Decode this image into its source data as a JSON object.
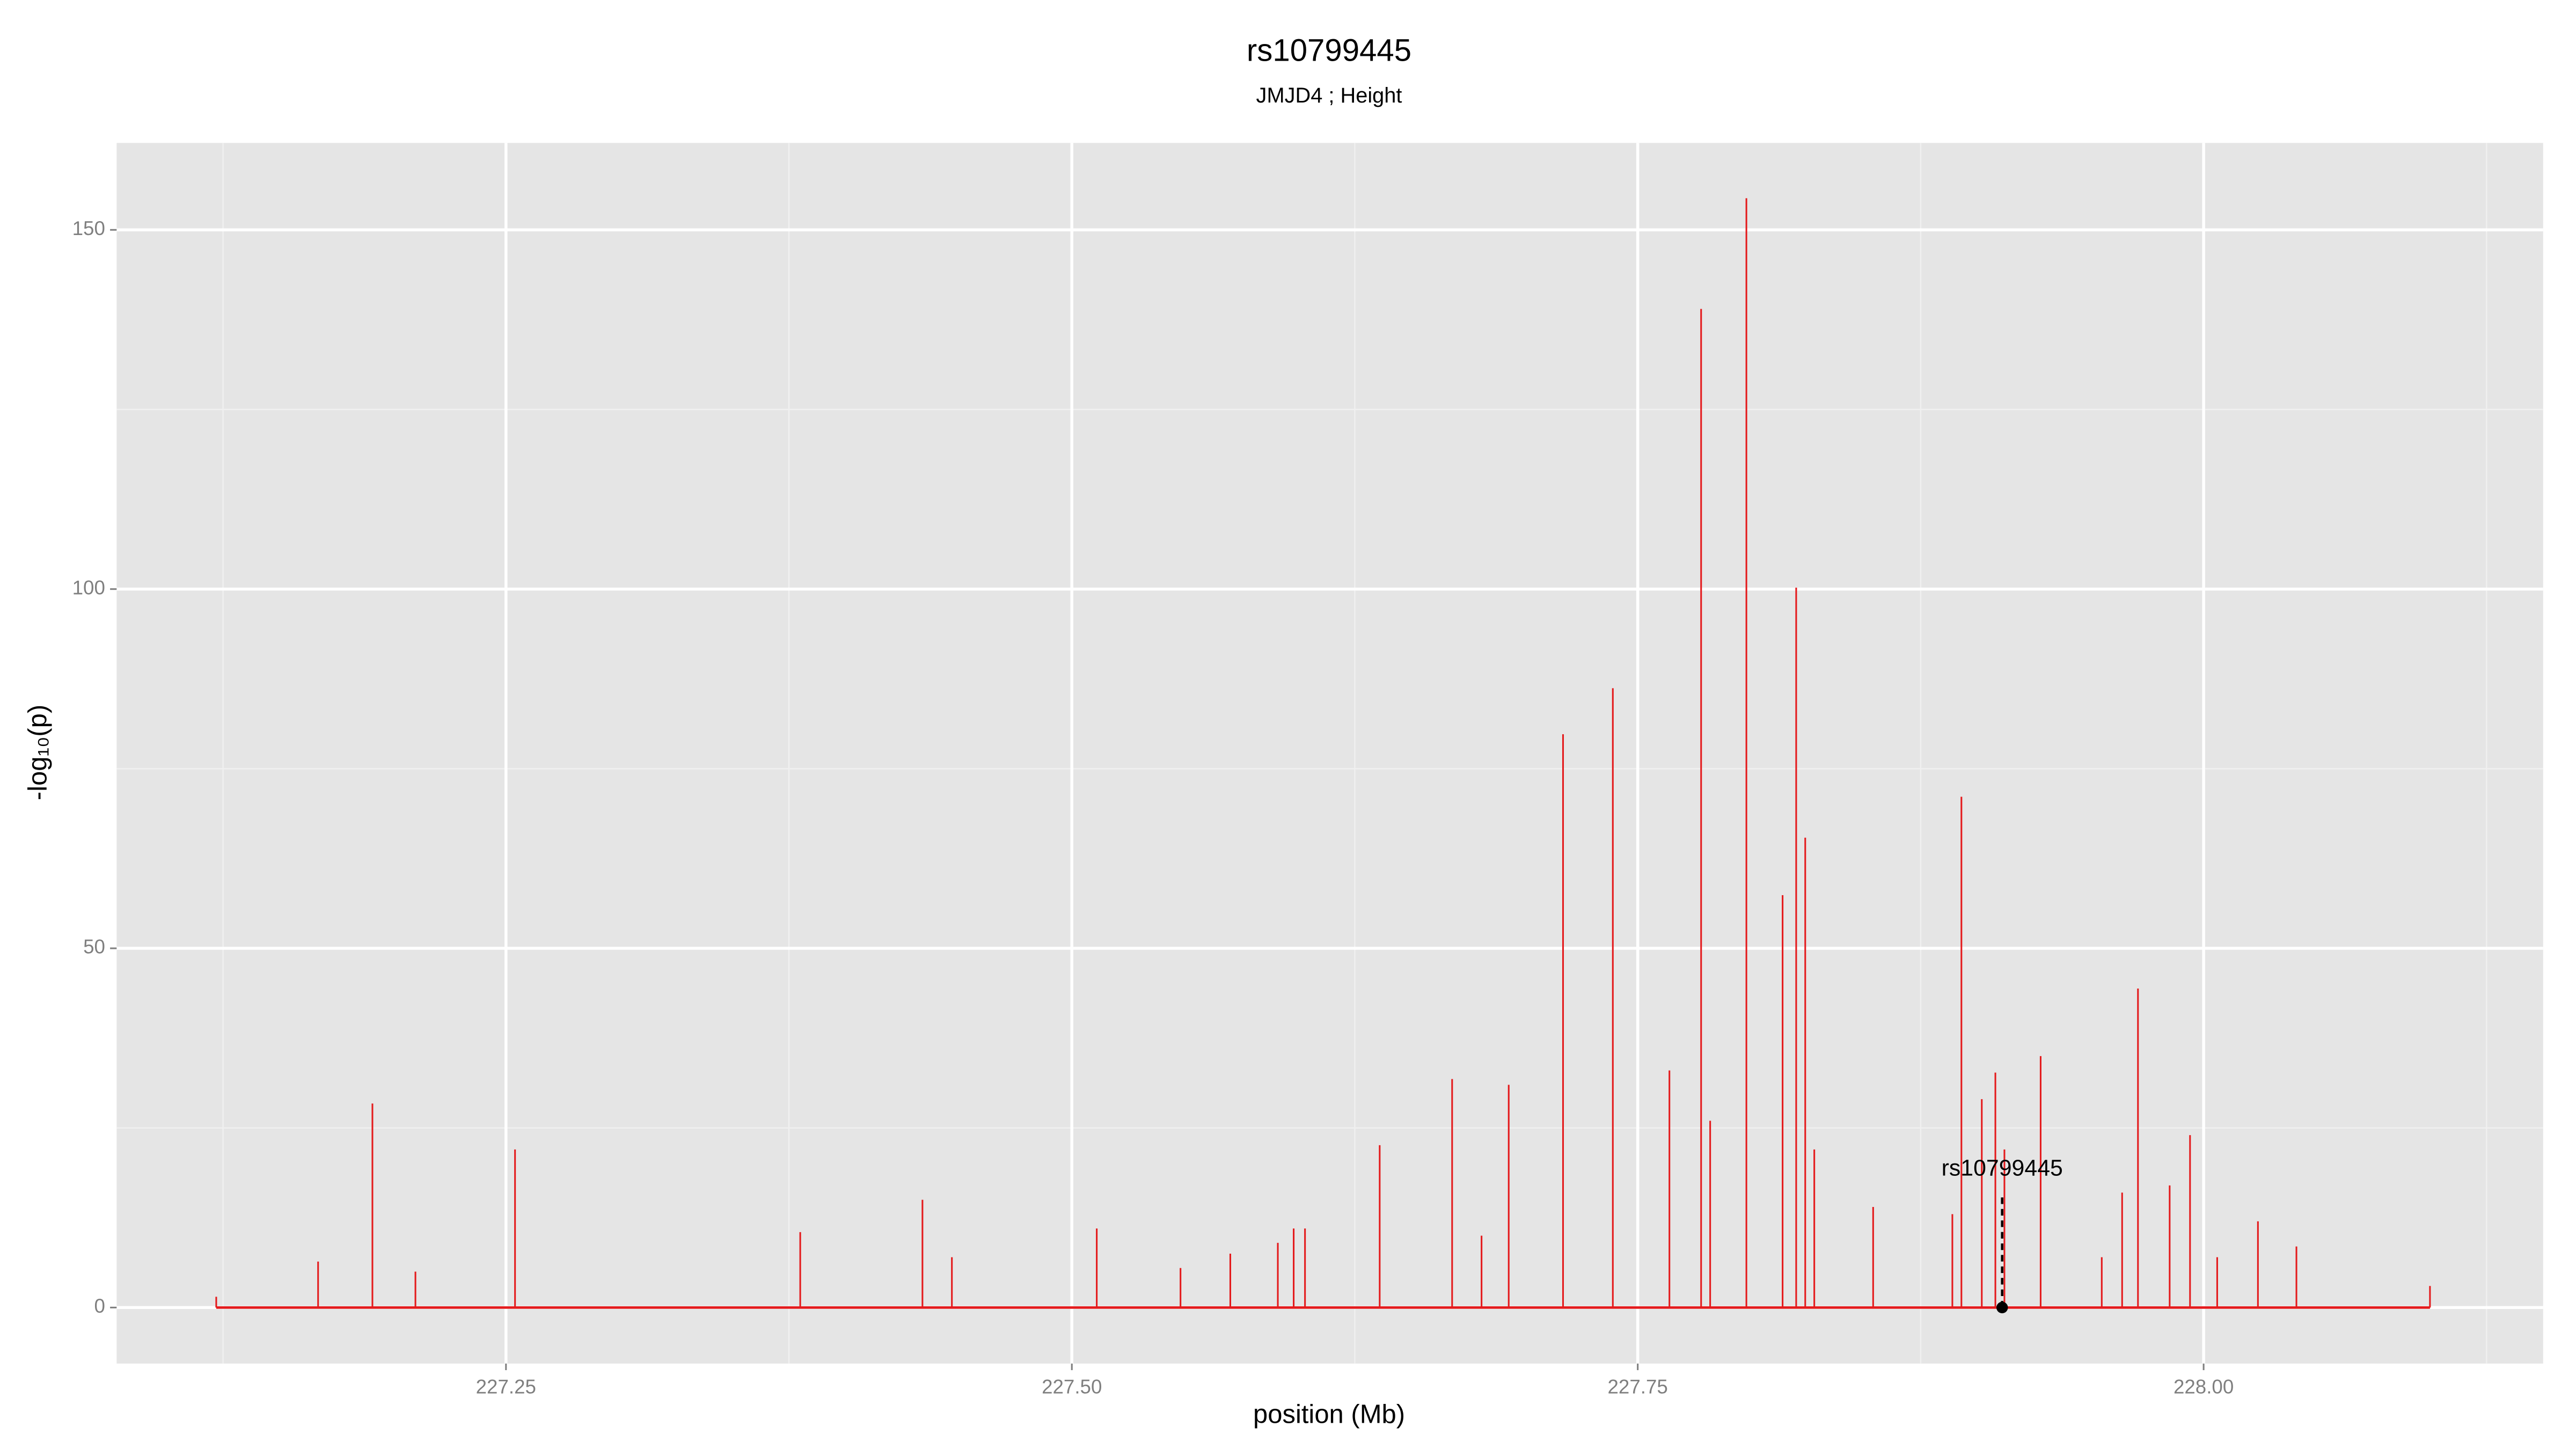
{
  "chart_data": {
    "type": "spike",
    "title": "rs10799445",
    "subtitle": "JMJD4 ; Height",
    "x_label": "position (Mb)",
    "y_label": "-log₁₀(p)",
    "xlim": [
      227.078,
      228.15
    ],
    "ylim": [
      -7.8,
      162.1
    ],
    "xticks": [
      227.25,
      {
        "value": 227.5,
        "label": "227.50"
      },
      227.75,
      {
        "value": 228.0,
        "label": "228.00"
      }
    ],
    "yticks": [
      0,
      50,
      100,
      150
    ],
    "grid": true,
    "series": [
      {
        "color": "#e41a1c",
        "x": [
          227.122,
          227.167,
          227.191,
          227.21,
          227.254,
          227.38,
          227.434,
          227.447,
          227.511,
          227.548,
          227.57,
          227.591,
          227.598,
          227.603,
          227.636,
          227.668,
          227.681,
          227.693,
          227.717,
          227.739,
          227.764,
          227.778,
          227.782,
          227.798,
          227.814,
          227.82,
          227.824,
          227.828,
          227.854,
          227.889,
          227.893,
          227.902,
          227.908,
          227.912,
          227.928,
          227.955,
          227.964,
          227.971,
          227.985,
          227.994,
          228.006,
          228.024,
          228.041,
          228.1
        ],
        "values": [
          1.5,
          6.4,
          28.4,
          5,
          22,
          10.5,
          15,
          7,
          11,
          5.5,
          7.5,
          9,
          11,
          11,
          22.6,
          31.8,
          10,
          31,
          79.8,
          86.2,
          33,
          139,
          26,
          154.4,
          57.4,
          100.2,
          65.4,
          22,
          14,
          13,
          71.1,
          29,
          32.7,
          22,
          35,
          7,
          16,
          44.4,
          17,
          24,
          7,
          12,
          8.5,
          3
        ]
      }
    ],
    "annotation": {
      "label": "rs10799445",
      "x": 227.911,
      "y": 0
    }
  }
}
